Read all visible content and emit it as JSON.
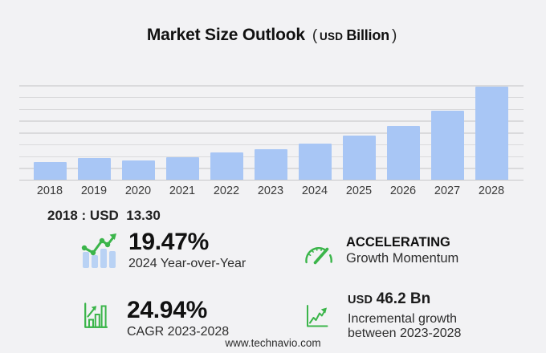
{
  "title": {
    "main": "Market Size Outlook",
    "open_paren": "(",
    "currency": "USD",
    "unit": "Billion",
    "close_paren": ")"
  },
  "chart_data": {
    "type": "bar",
    "title": "Market Size Outlook (USD Billion)",
    "categories": [
      "2018",
      "2019",
      "2020",
      "2021",
      "2022",
      "2023",
      "2024",
      "2025",
      "2026",
      "2027",
      "2028"
    ],
    "values": [
      13.3,
      15.9,
      14.2,
      16.8,
      19.9,
      22.6,
      27.0,
      32.6,
      40.0,
      51.3,
      68.8
    ],
    "xlabel": "",
    "ylabel": "USD Billion",
    "ylim": [
      0,
      70
    ],
    "grid": true,
    "gridline_count": 8,
    "legend": false,
    "bar_color": "#a8c6f5",
    "annotations": [
      "2018 : USD  13.30"
    ]
  },
  "base_note": {
    "text": "2018 : USD  13.30"
  },
  "stats": {
    "yoy": {
      "icon": "bar-chart-trend-up-icon",
      "value": "19.47%",
      "label": "2024 Year-over-Year"
    },
    "momentum": {
      "icon": "gauge-icon",
      "value": "ACCELERATING",
      "label": "Growth Momentum"
    },
    "cagr": {
      "icon": "growth-bars-arrow-icon",
      "value": "24.94%",
      "label": "CAGR 2023-2028"
    },
    "incremental": {
      "icon": "line-chart-up-icon",
      "currency": "USD",
      "value": "46.2 Bn",
      "label_line1": "Incremental growth",
      "label_line2": "between 2023-2028"
    }
  },
  "footer": {
    "url": "www.technavio.com"
  },
  "colors": {
    "background": "#f2f2f4",
    "bar": "#a8c6f5",
    "gridline": "#dadadc",
    "axis": "#c7c7c9",
    "green": "#3bb54a",
    "icon_bar_blue": "#b9d2f4"
  }
}
